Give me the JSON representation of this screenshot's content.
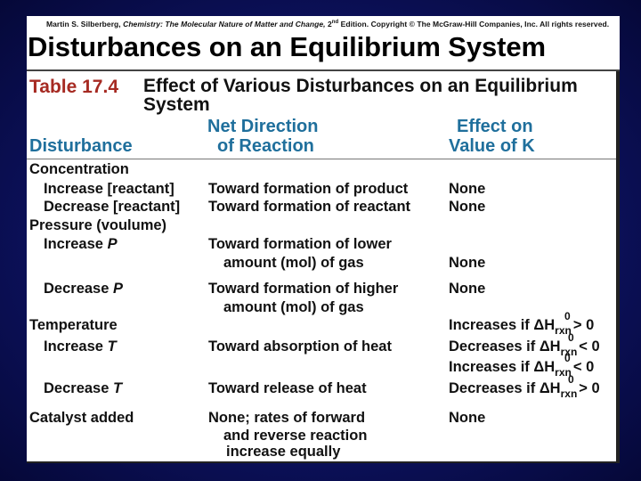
{
  "copyright": {
    "text_before": "Martin S. Silberberg, ",
    "book": "Chemistry: The Molecular Nature of Matter and Change, ",
    "edition_num": "2",
    "edition_sup": "nd",
    "text_after": " Edition.  Copyright © The McGraw-Hill Companies, Inc. All rights reserved."
  },
  "heading": "Disturbances on an Equilibrium System",
  "table": {
    "label": "Table 17.4",
    "title": "Effect of Various Disturbances on an Equilibrium System",
    "columns": {
      "disturbance": "Disturbance",
      "direction_line1": "Net Direction",
      "direction_line2": "of Reaction",
      "effect_line1": "Effect on",
      "effect_line2": "Value of K"
    },
    "rows": {
      "concentration": "Concentration",
      "inc_reactant": "Increase [reactant]",
      "inc_reactant_dir": "Toward formation of product",
      "inc_reactant_eff": "None",
      "dec_reactant": "Decrease [reactant]",
      "dec_reactant_dir": "Toward formation of reactant",
      "dec_reactant_eff": "None",
      "pressure": "Pressure (voulume)",
      "inc_p_label": "Increase",
      "inc_p_var": "P",
      "inc_p_dir1": "Toward formation of lower",
      "inc_p_dir2": "amount (mol) of gas",
      "inc_p_eff": "None",
      "dec_p_label": "Decrease",
      "dec_p_var": "P",
      "dec_p_dir1": "Toward formation of higher",
      "dec_p_dir2": "amount (mol) of gas",
      "dec_p_eff": "None",
      "temperature": "Temperature",
      "temp_eff1_pre": "Increases if ΔH",
      "temp_eff1_post": "> 0",
      "inc_t_label": "Increase",
      "inc_t_var": "T",
      "inc_t_dir": "Toward absorption of heat",
      "temp_eff2_pre": "Decreases if ΔH",
      "temp_eff2_post": "< 0",
      "temp_eff3_pre": "Increases if ΔH",
      "temp_eff3_post": "< 0",
      "dec_t_label": "Decrease",
      "dec_t_var": "T",
      "dec_t_dir": "Toward release of heat",
      "temp_eff4_pre": "Decreases if ΔH",
      "temp_eff4_post": "> 0",
      "catalyst": "Catalyst added",
      "catalyst_dir1": "None; rates of forward",
      "catalyst_dir2": "and reverse reaction",
      "catalyst_dir3": "increase equally",
      "catalyst_eff": "None",
      "dh_sup": "0",
      "dh_sub": "rxn"
    }
  }
}
